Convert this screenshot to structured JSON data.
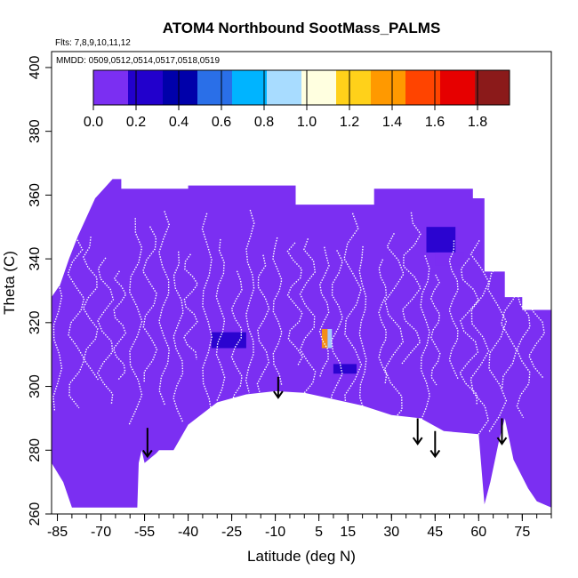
{
  "chart_data": {
    "type": "heatmap",
    "title": "ATOM4 Northbound SootMass_PALMS",
    "flights_label": "Flts: 7,8,9,10,11,12",
    "dates_label": "MMDD: 0509,0512,0514,0517,0518,0519",
    "xlabel": "Latitude (deg N)",
    "ylabel": "Theta (C)",
    "xlim": [
      -87,
      85
    ],
    "ylim": [
      260,
      405
    ],
    "x_ticks": [
      -85,
      -70,
      -55,
      -40,
      -25,
      -10,
      5,
      15,
      30,
      45,
      60,
      75
    ],
    "y_ticks": [
      260,
      280,
      300,
      320,
      340,
      360,
      380,
      400
    ],
    "colorbar": {
      "min": 0.0,
      "max": 1.95,
      "tick_values": [
        0.0,
        0.2,
        0.4,
        0.6,
        0.8,
        1.0,
        1.2,
        1.4,
        1.6,
        1.8
      ],
      "tick_labels": [
        "0.0",
        "0.2",
        "0.4",
        "0.6",
        "0.8",
        "1.0",
        "1.2",
        "1.4",
        "1.6",
        "1.8"
      ],
      "colors": [
        "#7b2ff2",
        "#2200cc",
        "#0000aa",
        "#2a6fe8",
        "#00b4ff",
        "#a8dcff",
        "#ffffe0",
        "#ffd11a",
        "#ff9900",
        "#ff4400",
        "#e60000",
        "#8b1a1a"
      ]
    },
    "background_color": "#7b2ff2",
    "coverage_top": [
      [
        -87,
        328
      ],
      [
        -84,
        332
      ],
      [
        -81,
        340
      ],
      [
        -78,
        347
      ],
      [
        -75,
        353
      ],
      [
        -72,
        359
      ],
      [
        -69,
        362
      ],
      [
        -66,
        365
      ],
      [
        -63,
        365
      ],
      [
        -63,
        362
      ],
      [
        -40,
        362
      ],
      [
        -40,
        363
      ],
      [
        -3,
        363
      ],
      [
        -3,
        357
      ],
      [
        24,
        357
      ],
      [
        24,
        362
      ],
      [
        58,
        362
      ],
      [
        58,
        359
      ],
      [
        62,
        359
      ],
      [
        62,
        336
      ],
      [
        69,
        336
      ],
      [
        69,
        328
      ],
      [
        75,
        328
      ],
      [
        75,
        324
      ],
      [
        85,
        324
      ]
    ],
    "coverage_bottom": [
      [
        85,
        262
      ],
      [
        80,
        264
      ],
      [
        77,
        268
      ],
      [
        72,
        277
      ],
      [
        69,
        290
      ],
      [
        67,
        283
      ],
      [
        64,
        270
      ],
      [
        62,
        263
      ],
      [
        60,
        285
      ],
      [
        48,
        286
      ],
      [
        40,
        290
      ],
      [
        30,
        291
      ],
      [
        20,
        294
      ],
      [
        10,
        296
      ],
      [
        0,
        298
      ],
      [
        -10,
        298.5
      ],
      [
        -20,
        297.5
      ],
      [
        -30,
        295
      ],
      [
        -40,
        288
      ],
      [
        -45,
        280
      ],
      [
        -50,
        280
      ],
      [
        -51,
        279
      ],
      [
        -55,
        276
      ],
      [
        -56,
        280
      ],
      [
        -57,
        276
      ],
      [
        -57.5,
        262
      ],
      [
        -63,
        262
      ],
      [
        -70,
        262
      ],
      [
        -80,
        262
      ],
      [
        -83,
        270
      ],
      [
        -87,
        276
      ]
    ],
    "patches": [
      {
        "lat": [
          -30,
          -22
        ],
        "theta": [
          313,
          318
        ],
        "value": 0.15
      },
      {
        "lat": [
          -32,
          -20
        ],
        "theta": [
          312,
          317
        ],
        "value": 0.25
      },
      {
        "lat": [
          6,
          8
        ],
        "theta": [
          312,
          318
        ],
        "value": 1.3
      },
      {
        "lat": [
          8,
          9.5
        ],
        "theta": [
          312,
          318
        ],
        "value": 0.85
      },
      {
        "lat": [
          9.5,
          20
        ],
        "theta": [
          299,
          304
        ],
        "value": 0.15
      },
      {
        "lat": [
          10,
          18
        ],
        "theta": [
          304,
          307
        ],
        "value": 0.25
      },
      {
        "lat": [
          42,
          52
        ],
        "theta": [
          342,
          350
        ],
        "value": 0.18
      },
      {
        "lat": [
          45,
          55
        ],
        "theta": [
          338,
          342
        ],
        "value": 0.12
      }
    ],
    "arrows": [
      {
        "lat": -54,
        "theta_top": 287,
        "theta_tip": 278
      },
      {
        "lat": -9,
        "theta_top": 303,
        "theta_tip": 296.5
      },
      {
        "lat": 39,
        "theta_top": 290,
        "theta_tip": 282
      },
      {
        "lat": 45,
        "theta_top": 286,
        "theta_tip": 278
      },
      {
        "lat": 68,
        "theta_top": 290,
        "theta_tip": 282
      }
    ],
    "tracks_color": "#ffffff"
  }
}
